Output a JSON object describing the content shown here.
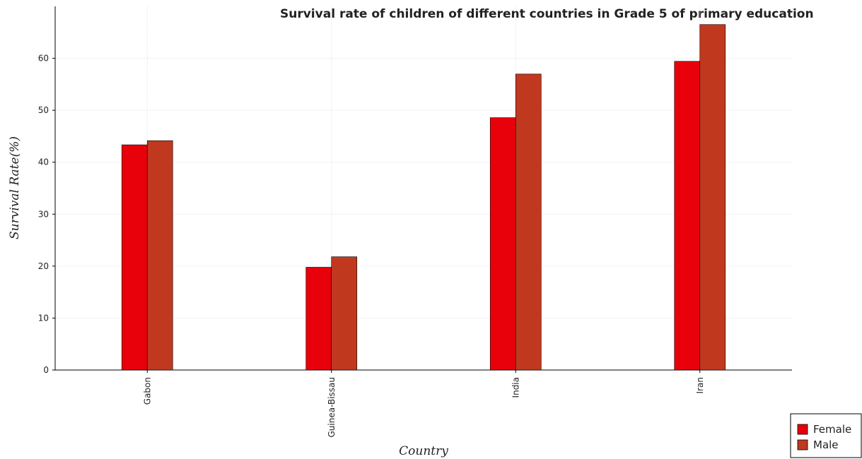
{
  "chart_data": {
    "type": "bar",
    "title": "Survival rate of children of different countries in Grade 5 of primary education",
    "xlabel": "Country",
    "ylabel": "Survival Rate(%)",
    "categories": [
      "Gabon",
      "Guinea-Bissau",
      "India",
      "Iran"
    ],
    "series": [
      {
        "name": "Female",
        "values": [
          43.35,
          19.78,
          48.58,
          59.42
        ],
        "color": "#e8000b"
      },
      {
        "name": "Male",
        "values": [
          44.15,
          21.8,
          56.97,
          66.5
        ],
        "color": "#c0391f"
      }
    ],
    "ylim": [
      0,
      70
    ],
    "yticks": [
      0,
      10,
      20,
      30,
      40,
      50,
      60
    ],
    "grid": true,
    "legend_position": "bottom-right"
  }
}
